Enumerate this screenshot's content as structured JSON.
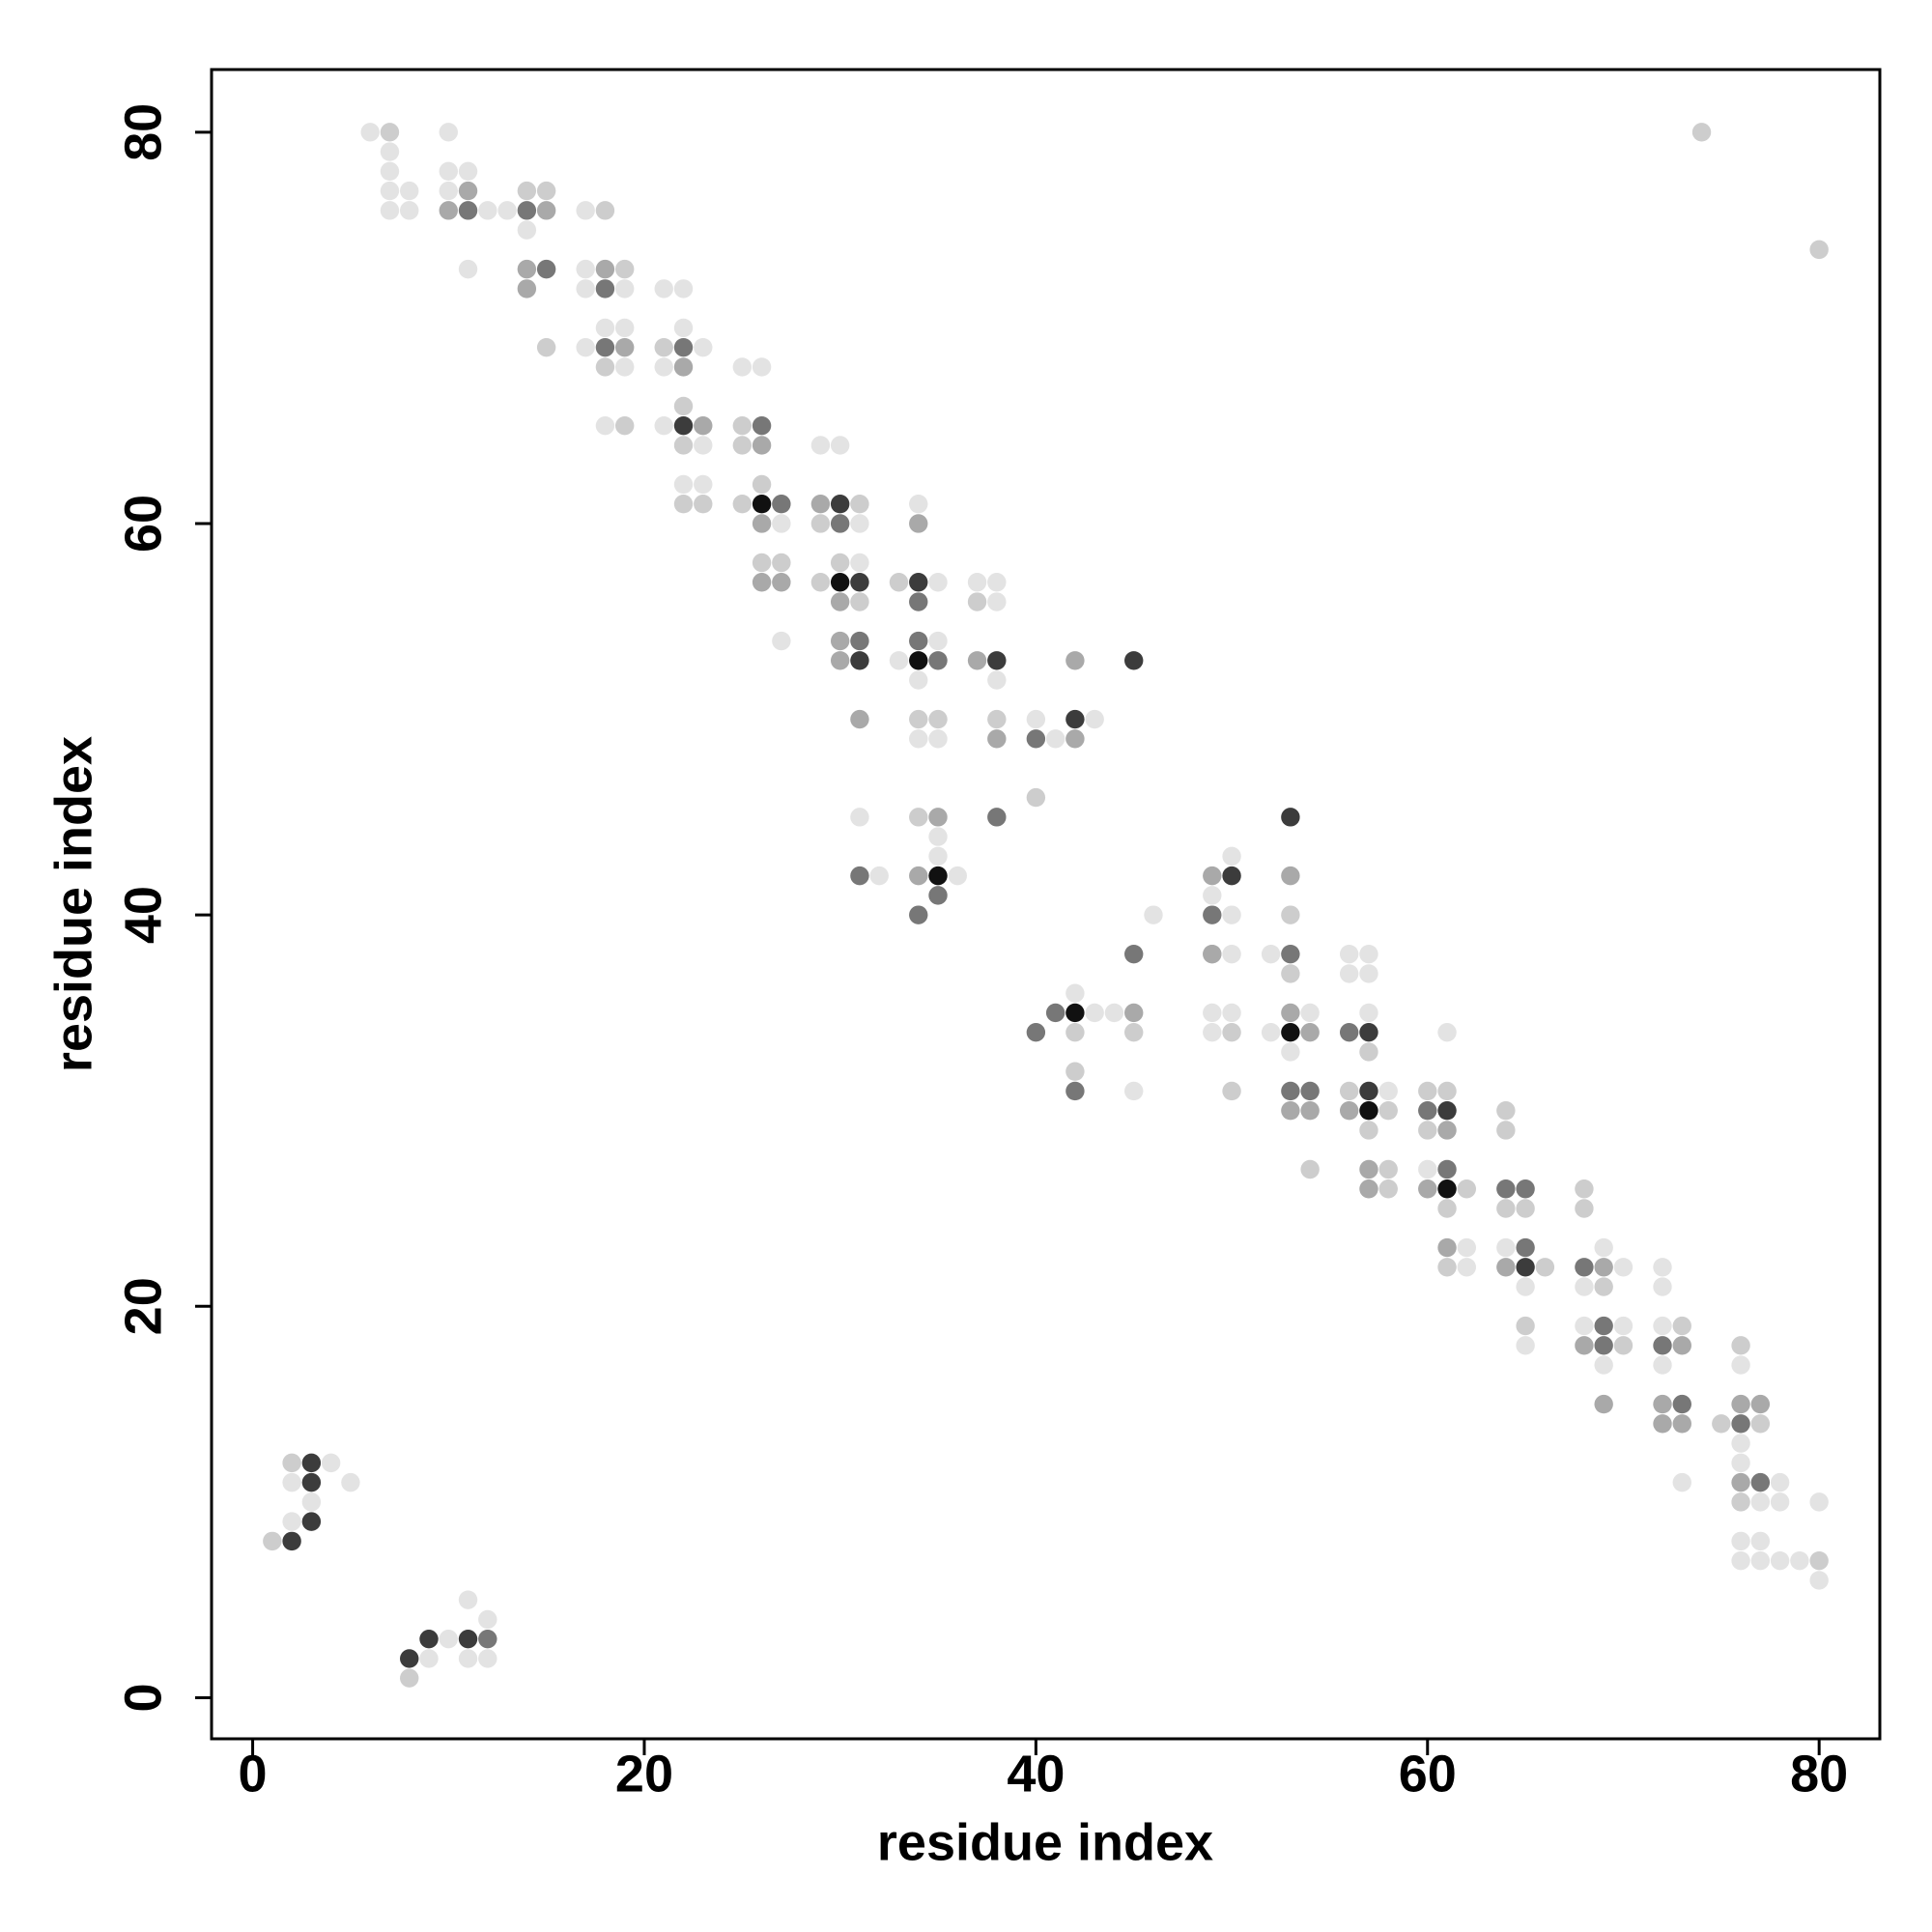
{
  "chart_data": {
    "type": "scatter",
    "xlabel": "residue index",
    "ylabel": "residue index",
    "xlim": [
      -2.1,
      83.1
    ],
    "ylim": [
      -2.1,
      83.2
    ],
    "xticks": [
      0,
      20,
      40,
      60,
      80
    ],
    "yticks": [
      0,
      20,
      40,
      60,
      80
    ],
    "series": [
      {
        "color": "#e3e3e3",
        "x": [
          6,
          10,
          7,
          7,
          10,
          11,
          7,
          8,
          10,
          7,
          8,
          12,
          13,
          17,
          14,
          11,
          17,
          17,
          19,
          21,
          22,
          18,
          19,
          22,
          17,
          23,
          19,
          21,
          25,
          26,
          18,
          21,
          23,
          29,
          30,
          22,
          23,
          34,
          27,
          31,
          31,
          35,
          37,
          38,
          38,
          27,
          35,
          33,
          34,
          38,
          40,
          43,
          34,
          35,
          41,
          31,
          35,
          35,
          50,
          32,
          36,
          49,
          46,
          50,
          50,
          52,
          56,
          57,
          56,
          57,
          42,
          43,
          44,
          49,
          50,
          54,
          57,
          49,
          52,
          61,
          53,
          45,
          58,
          60,
          62,
          64,
          69,
          62,
          70,
          72,
          65,
          68,
          72,
          68,
          70,
          72,
          65,
          69,
          72,
          76,
          76,
          4,
          76,
          2,
          5,
          73,
          78,
          3,
          77,
          78,
          80,
          2,
          76,
          77,
          76,
          77,
          78,
          79,
          80,
          11,
          12,
          10,
          9,
          11,
          12
        ],
        "y": [
          80,
          80,
          79,
          78,
          78,
          78,
          77,
          77,
          77,
          76,
          76,
          76,
          76,
          76,
          75,
          73,
          73,
          72,
          72,
          72,
          72,
          70,
          70,
          70,
          69,
          69,
          68,
          68,
          68,
          68,
          65,
          65,
          64,
          64,
          64,
          62,
          62,
          61,
          60,
          60,
          58,
          57,
          57,
          57,
          56,
          54,
          54,
          53,
          52,
          52,
          50,
          50,
          49,
          49,
          49,
          45,
          44,
          43,
          43,
          42,
          42,
          41,
          40,
          40,
          38,
          38,
          38,
          38,
          37,
          37,
          36,
          35,
          35,
          35,
          35,
          35,
          35,
          34,
          34,
          34,
          33,
          31,
          31,
          27,
          23,
          23,
          23,
          22,
          22,
          22,
          21,
          21,
          21,
          19,
          19,
          19,
          18,
          17,
          17,
          17,
          13,
          12,
          12,
          11,
          11,
          11,
          11,
          10,
          10,
          10,
          10,
          9,
          8,
          8,
          7,
          7,
          7,
          7,
          6,
          5,
          4,
          3,
          2,
          2,
          2
        ]
      },
      {
        "color": "#cdcdcd",
        "x": [
          7,
          74,
          14,
          15,
          18,
          80,
          19,
          15,
          21,
          18,
          22,
          19,
          25,
          22,
          25,
          26,
          22,
          23,
          25,
          31,
          29,
          26,
          27,
          30,
          29,
          33,
          31,
          37,
          34,
          35,
          38,
          40,
          34,
          53,
          49,
          53,
          42,
          45,
          50,
          57,
          42,
          50,
          56,
          60,
          61,
          58,
          64,
          57,
          60,
          64,
          54,
          58,
          58,
          62,
          68,
          61,
          64,
          65,
          68,
          61,
          66,
          69,
          65,
          73,
          70,
          76,
          75,
          77,
          2,
          76,
          1,
          80,
          8
        ],
        "y": [
          80,
          80,
          77,
          77,
          76,
          74,
          73,
          69,
          69,
          68,
          66,
          65,
          65,
          64,
          64,
          62,
          61,
          61,
          61,
          61,
          60,
          58,
          58,
          58,
          57,
          57,
          56,
          56,
          50,
          50,
          50,
          46,
          45,
          40,
          38,
          37,
          34,
          34,
          34,
          33,
          32,
          31,
          31,
          31,
          31,
          30,
          30,
          29,
          29,
          29,
          27,
          27,
          26,
          26,
          26,
          25,
          25,
          25,
          25,
          22,
          22,
          21,
          19,
          19,
          18,
          18,
          14,
          14,
          12,
          10,
          8,
          7,
          1
        ]
      },
      {
        "color": "#a9a9a9",
        "x": [
          11,
          10,
          15,
          14,
          18,
          14,
          19,
          22,
          23,
          26,
          29,
          26,
          34,
          26,
          27,
          30,
          30,
          30,
          37,
          42,
          31,
          38,
          42,
          35,
          34,
          49,
          53,
          49,
          45,
          53,
          54,
          53,
          54,
          56,
          61,
          57,
          57,
          60,
          61,
          64,
          69,
          68,
          73,
          69,
          72,
          76,
          77,
          72,
          73,
          76
        ],
        "y": [
          77,
          76,
          76,
          73,
          73,
          72,
          69,
          68,
          65,
          64,
          61,
          60,
          60,
          57,
          57,
          56,
          54,
          53,
          53,
          53,
          50,
          49,
          49,
          45,
          42,
          42,
          42,
          38,
          35,
          35,
          34,
          30,
          30,
          30,
          29,
          27,
          26,
          26,
          23,
          22,
          22,
          18,
          18,
          15,
          15,
          15,
          15,
          14,
          14,
          11
        ]
      },
      {
        "color": "#777777",
        "x": [
          11,
          14,
          15,
          18,
          18,
          22,
          26,
          27,
          30,
          34,
          31,
          34,
          35,
          40,
          38,
          31,
          35,
          34,
          49,
          45,
          53,
          41,
          40,
          56,
          42,
          53,
          54,
          60,
          61,
          64,
          65,
          65,
          68,
          69,
          69,
          72,
          73,
          76,
          77,
          12
        ],
        "y": [
          76,
          76,
          73,
          72,
          69,
          69,
          65,
          61,
          60,
          56,
          54,
          54,
          53,
          49,
          45,
          42,
          41,
          40,
          40,
          38,
          38,
          35,
          34,
          34,
          31,
          31,
          31,
          30,
          27,
          26,
          26,
          23,
          22,
          19,
          18,
          18,
          15,
          14,
          11,
          3
        ]
      },
      {
        "color": "#3c3c3c",
        "x": [
          22,
          30,
          31,
          34,
          31,
          38,
          45,
          42,
          53,
          50,
          57,
          57,
          61,
          65,
          3,
          3,
          3,
          2,
          9,
          11,
          8
        ],
        "y": [
          65,
          61,
          57,
          57,
          53,
          53,
          53,
          50,
          45,
          42,
          34,
          31,
          30,
          22,
          12,
          11,
          9,
          8,
          3,
          3,
          2
        ]
      },
      {
        "color": "#111111",
        "x": [
          26,
          30,
          34,
          35,
          42,
          53,
          57,
          61
        ],
        "y": [
          61,
          57,
          53,
          42,
          35,
          34,
          30,
          26
        ]
      }
    ]
  }
}
